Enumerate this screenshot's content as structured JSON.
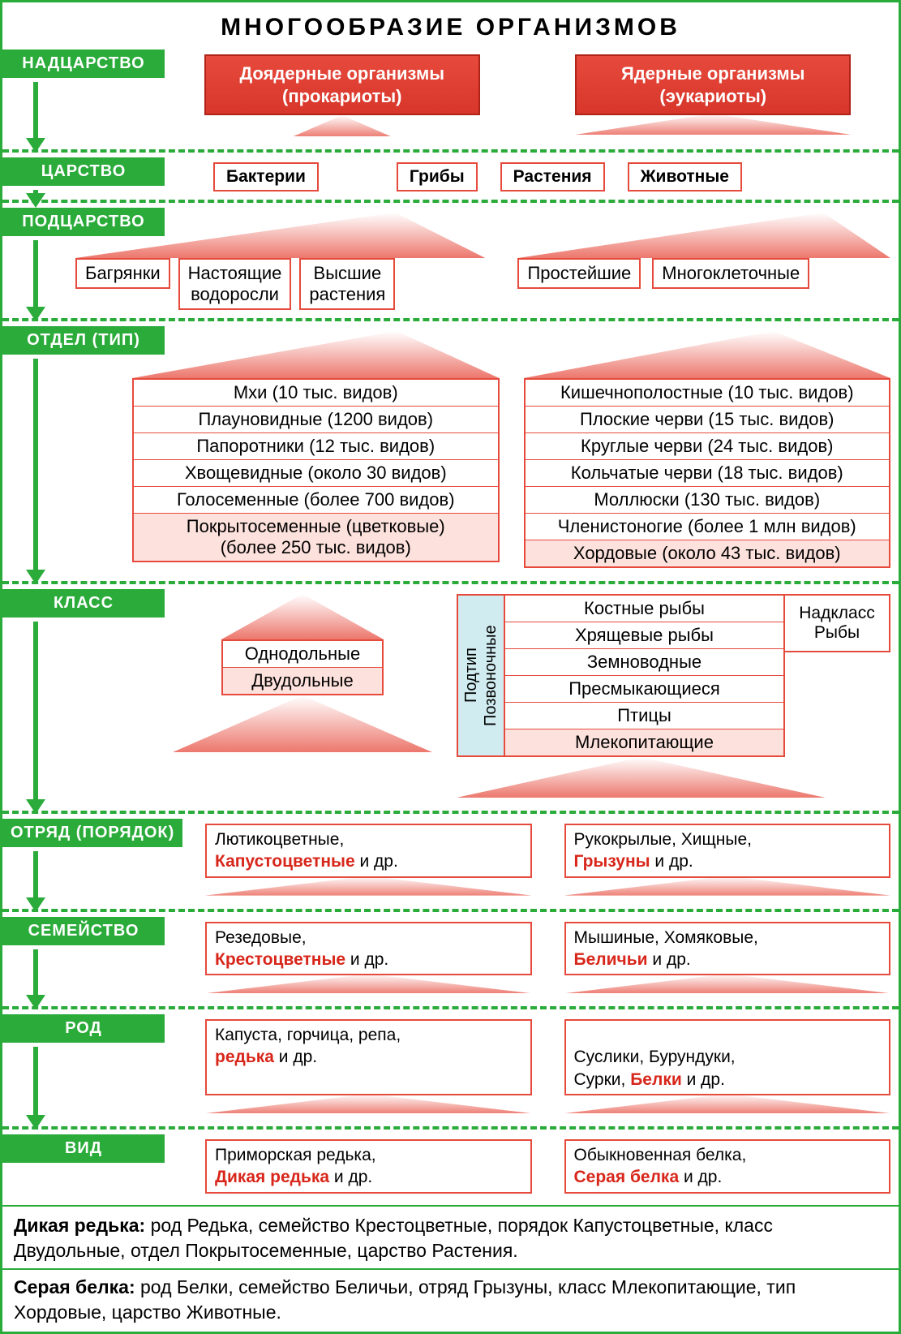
{
  "title": "МНОГООБРАЗИЕ ОРГАНИЗМОВ",
  "colors": {
    "frame": "#2aab3a",
    "rank_bg": "#2aab3a",
    "rank_fg": "#ffffff",
    "red_border": "#e64a3c",
    "red_fill_top": "#e64a3c",
    "red_fill_bottom": "#d8362a",
    "pink_fill": "#fde1dc",
    "subtype_bg": "#d1ecf0",
    "highlight_text": "#d8261a",
    "dash": "#2aab3a"
  },
  "fonts": {
    "title_pt": 30,
    "rank_pt": 20,
    "box_pt": 22,
    "footer_pt": 23
  },
  "ranks": {
    "superkingdom": "НАДЦАРСТВО",
    "kingdom": "ЦАРСТВО",
    "subkingdom": "ПОДЦАРСТВО",
    "division": "ОТДЕЛ (ТИП)",
    "class": "КЛАСС",
    "order": "ОТРЯД (ПОРЯДОК)",
    "family": "СЕМЕЙСТВО",
    "genus": "РОД",
    "species": "ВИД"
  },
  "superkingdom": {
    "left": "Доядерные организмы\n(прокариоты)",
    "right": "Ядерные организмы\n(эукариоты)"
  },
  "kingdom": {
    "items": [
      "Бактерии",
      "Грибы",
      "Растения",
      "Животные"
    ]
  },
  "subkingdom": {
    "plants": [
      "Багрянки",
      "Настоящие\nводоросли",
      "Высшие\nрастения"
    ],
    "animals": [
      "Простейшие",
      "Многоклеточные"
    ]
  },
  "division": {
    "plants": [
      {
        "text": "Мхи (10 тыс. видов)",
        "pink": false
      },
      {
        "text": "Плауновидные (1200 видов)",
        "pink": false
      },
      {
        "text": "Папоротники (12 тыс. видов)",
        "pink": false
      },
      {
        "text": "Хвощевидные (около 30 видов)",
        "pink": false
      },
      {
        "text": "Голосеменные (более 700 видов)",
        "pink": false
      },
      {
        "text": "Покрытосеменные (цветковые)\n(более 250 тыс. видов)",
        "pink": true
      }
    ],
    "animals": [
      {
        "text": "Кишечнополостные (10 тыс. видов)",
        "pink": false
      },
      {
        "text": "Плоские черви (15 тыс. видов)",
        "pink": false
      },
      {
        "text": "Круглые черви (24 тыс. видов)",
        "pink": false
      },
      {
        "text": "Кольчатые черви (18 тыс. видов)",
        "pink": false
      },
      {
        "text": "Моллюски (130 тыс. видов)",
        "pink": false
      },
      {
        "text": "Членистоногие (более 1 млн видов)",
        "pink": false
      },
      {
        "text": "Хордовые (около 43 тыс. видов)",
        "pink": true
      }
    ]
  },
  "class": {
    "plants": [
      "Однодольные",
      "Двудольные"
    ],
    "subtype_label": "Подтип\nПозвоночные",
    "animals": [
      {
        "text": "Костные рыбы",
        "pink": false
      },
      {
        "text": "Хрящевые рыбы",
        "pink": false
      },
      {
        "text": "Земноводные",
        "pink": false
      },
      {
        "text": "Пресмыкающиеся",
        "pink": false
      },
      {
        "text": "Птицы",
        "pink": false
      },
      {
        "text": "Млекопитающие",
        "pink": true
      }
    ],
    "superclass_label": "Надкласс\nРыбы"
  },
  "order": {
    "plants": {
      "plain": "Лютикоцветные,",
      "hl": "Капустоцветные",
      "tail": " и др."
    },
    "animals": {
      "plain": "Рукокрылые, Хищные,",
      "hl": "Грызуны",
      "tail": " и др."
    }
  },
  "family": {
    "plants": {
      "plain": "Резедовые,",
      "hl": "Крестоцветные",
      "tail": " и др."
    },
    "animals": {
      "plain": "Мышиные, Хомяковые,",
      "hl": "Беличьи",
      "tail": " и др."
    }
  },
  "genus": {
    "plants": {
      "plain": "Капуста, горчица, репа,",
      "hl": "редька",
      "tail": " и др."
    },
    "animals": {
      "plain": "Суслики, Бурундуки,\nСурки, ",
      "hl": "Белки",
      "tail": " и др."
    }
  },
  "species": {
    "plants": {
      "plain": "Приморская редька,",
      "hl": "Дикая редька",
      "tail": " и др."
    },
    "animals": {
      "plain": "Обыкновенная белка,",
      "hl": "Серая белка",
      "tail": " и др."
    }
  },
  "footer": {
    "line1_title": "Дикая редька:",
    "line1_text": " род Редька, семейство Крестоцветные, порядок Капустоцветные, класс Двудольные, отдел Покрытосеменные, царство Растения.",
    "line2_title": "Серая белка:",
    "line2_text": " род Белки, семейство Беличьи, отряд Грызуны, класс Млекопитающие, тип Хордовые, царство Животные."
  }
}
